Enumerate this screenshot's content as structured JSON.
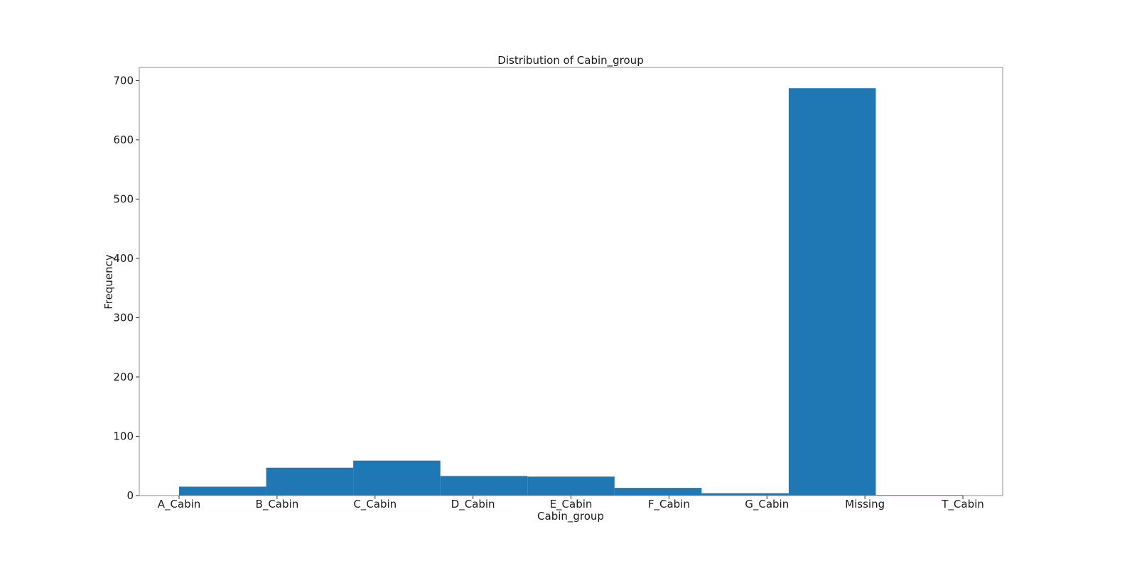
{
  "chart_data": {
    "type": "bar",
    "title": "Distribution of Cabin_group",
    "xlabel": "Cabin_group",
    "ylabel": "Frequency",
    "categories": [
      "A_Cabin",
      "B_Cabin",
      "C_Cabin",
      "D_Cabin",
      "E_Cabin",
      "F_Cabin",
      "G_Cabin",
      "Missing",
      "T_Cabin"
    ],
    "bins": [
      {
        "value": 15,
        "label": "A_Cabin"
      },
      {
        "value": 47,
        "label": "B_Cabin"
      },
      {
        "value": 59,
        "label": "C_Cabin"
      },
      {
        "value": 33,
        "label": "D_Cabin"
      },
      {
        "value": 32,
        "label": "E_Cabin"
      },
      {
        "value": 13,
        "label": "F_Cabin"
      },
      {
        "value": 4,
        "label": "G_Cabin"
      },
      {
        "value": 687,
        "label": "Missing"
      },
      {
        "value": 1,
        "label": "T_Cabin"
      }
    ],
    "y_ticks": [
      0,
      100,
      200,
      300,
      400,
      500,
      600,
      700
    ],
    "ylim": [
      0,
      722
    ],
    "grid": false,
    "bar_color": "#1f77b4"
  }
}
